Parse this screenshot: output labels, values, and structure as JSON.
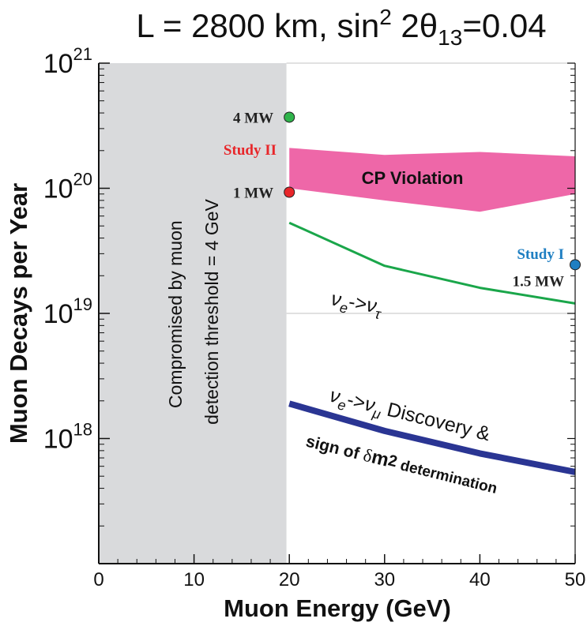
{
  "chart_data": {
    "type": "line",
    "title": {
      "prefix": "L = 2800 km, sin",
      "sup": "2",
      "mid": " 2θ",
      "sub": "13",
      "suffix": "=0.04"
    },
    "xlabel": "Muon Energy  (GeV)",
    "ylabel": "Muon Decays per Year",
    "xlim": [
      0,
      50
    ],
    "ylim": [
      1e+17,
      1e+21
    ],
    "yscale": "log",
    "x_ticks": [
      "0",
      "10",
      "20",
      "30",
      "40",
      "50"
    ],
    "x_tick_values": [
      0,
      10,
      20,
      30,
      40,
      50
    ],
    "y_ticks": [
      {
        "value": 1e+21,
        "base": "10",
        "exp": "21"
      },
      {
        "value": 1e+20,
        "base": "10",
        "exp": "20"
      },
      {
        "value": 1e+19,
        "base": "10",
        "exp": "19"
      },
      {
        "value": 1e+18,
        "base": "10",
        "exp": "18"
      }
    ],
    "gridlines_y": [
      1e+21,
      1e+20,
      1e+19
    ],
    "excluded_region": {
      "x": [
        0,
        19.7
      ],
      "label_line1": "Compromised by muon",
      "label_line2": "detection threshold = 4 GeV",
      "color": "#d9dadc"
    },
    "bands": [
      {
        "label": "CP  Violation",
        "color": "#ee67a8",
        "x": [
          20,
          30,
          40,
          50
        ],
        "upper": [
          2.1e+20,
          1.85e+20,
          1.95e+20,
          1.8e+20
        ],
        "lower": [
          1e+20,
          8e+19,
          6.5e+19,
          9e+19
        ]
      }
    ],
    "series": [
      {
        "label_parts": {
          "a": "ν",
          "a_sub": "e",
          "arrow": "->",
          "b": "ν",
          "b_sub": "τ",
          "rest": ""
        },
        "color": "#1aa64a",
        "x": [
          20,
          30,
          40,
          50
        ],
        "values": [
          5.3e+19,
          2.4e+19,
          1.6e+19,
          1.2e+19
        ]
      },
      {
        "label_parts": {
          "a": "ν",
          "a_sub": "e",
          "arrow": "->",
          "b": "ν",
          "b_sub": "μ",
          "rest": " Discovery &"
        },
        "label2_parts": {
          "a": "sign of ",
          "b": "δ",
          "c": "m",
          "c_sup": "2",
          "d": " determination"
        },
        "color": "#2a3593",
        "x": [
          20,
          30,
          40,
          50
        ],
        "values": [
          1.9e+18,
          1.15e+18,
          7.6e+17,
          5.4e+17
        ]
      }
    ],
    "points": [
      {
        "label": "4 MW",
        "x": 20,
        "y": 3.7e+20,
        "color": "#2fb44b",
        "label_color": "#222222",
        "label_side": "left"
      },
      {
        "label": "1 MW",
        "x": 20,
        "y": 9.3e+19,
        "color": "#e8262a",
        "label_color": "#222222",
        "label_side": "left"
      },
      {
        "label": "1.5 MW",
        "x": 50,
        "y": 2.45e+19,
        "color": "#1f7fc2",
        "label_color": "#222222",
        "label_side": "left"
      }
    ],
    "annotations": [
      {
        "text": "Study II",
        "color": "#e8262a"
      },
      {
        "text": "Study I",
        "color": "#1f7fc2"
      }
    ]
  }
}
